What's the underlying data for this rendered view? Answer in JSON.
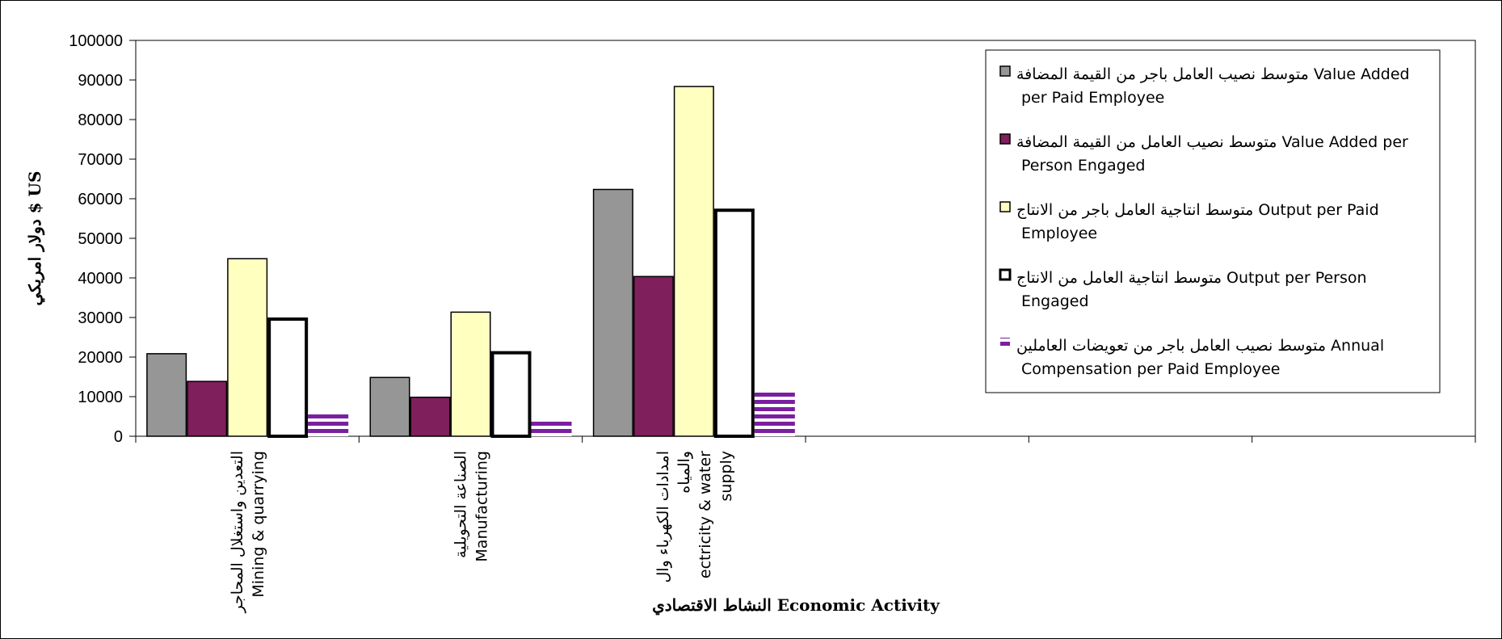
{
  "chart_data": {
    "type": "bar",
    "title": "",
    "ylabel": "دولار امريكي $ US",
    "xlabel": "النشاط الاقتصادي Economic Activity",
    "ylim": [
      0,
      100000
    ],
    "yticks": [
      "0",
      "10000",
      "20000",
      "30000",
      "40000",
      "50000",
      "60000",
      "70000",
      "80000",
      "90000",
      "100000"
    ],
    "grid": false,
    "legend_position": "top-right",
    "categories": [
      {
        "en": "Mining & quarrying",
        "ar": "التعدين واستغلال المحاجر"
      },
      {
        "en": "Manufacturing",
        "ar": "الصناعة التحويلية"
      },
      {
        "en": "Electricity & water supply",
        "ar": "امدادات الكهرباء وال والمياه"
      }
    ],
    "category_lines": [
      [
        "التعدين واستغلال المحاجر",
        "Mining & quarrying"
      ],
      [
        "الصناعة التحويلية",
        "Manufacturing"
      ],
      [
        "امدادات الكهرباء وال",
        "والمياه",
        "ectricity & water",
        "supply"
      ]
    ],
    "series": [
      {
        "name": "متوسط نصيب العامل باجر من القيمة المضافة Value Added per Paid Employee",
        "legend_lines": [
          "متوسط نصيب العامل  باجر من القيمة  المضافة  Value Added",
          "per Paid  Employee"
        ],
        "values": [
          21000,
          15000,
          62500
        ],
        "fill": "#969696",
        "stroke": "#000000",
        "stroke_width": 1.5,
        "pattern": "solid"
      },
      {
        "name": "متوسط نصيب العامل من القيمة المضافة Value Added per Person Engaged",
        "legend_lines": [
          "متوسط نصيب العامل من القيمة المضافة Value Added per",
          "Person Engaged"
        ],
        "values": [
          14000,
          10000,
          40500
        ],
        "fill": "#7f1f5b",
        "stroke": "#000000",
        "stroke_width": 1.5,
        "pattern": "solid"
      },
      {
        "name": "متوسط انتاجية العامل باجر من الانتاج Output per Paid Employee",
        "legend_lines": [
          "متوسط انتاجية العامل  باجر من الانتاج  Output per Paid",
          "Employee"
        ],
        "values": [
          45000,
          31500,
          88500
        ],
        "fill": "#ffffc0",
        "stroke": "#000000",
        "stroke_width": 1.5,
        "pattern": "solid"
      },
      {
        "name": "متوسط انتاجية العامل من الانتاج Output per Person Engaged",
        "legend_lines": [
          "متوسط انتاجية العامل  من الانتاج    Output per Person",
          "Engaged"
        ],
        "values": [
          30000,
          21500,
          57500
        ],
        "fill": "#ffffff",
        "stroke": "#000000",
        "stroke_width": 4,
        "pattern": "solid"
      },
      {
        "name": "متوسط نصيب العامل باجر من تعويضات العاملين Annual Compensation per Paid Employee",
        "legend_lines": [
          "متوسط نصيب العامل  باجر من تعويضات   العاملين  Annual",
          "Compensation  per  Paid Employee"
        ],
        "values": [
          6000,
          4200,
          11200
        ],
        "fill": "#7a1fa0",
        "stroke": "none",
        "stroke_width": 0,
        "pattern": "horizontal-stripes"
      }
    ]
  }
}
